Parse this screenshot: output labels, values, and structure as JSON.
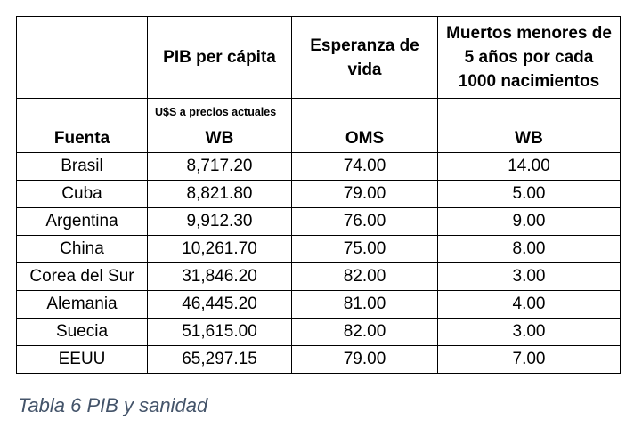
{
  "table": {
    "headers": [
      "",
      "PIB per cápita",
      "Esperanza de vida",
      "Muertos menores de 5 años por cada 1000 nacimientos"
    ],
    "unit_note": "U$S a precios actuales",
    "source_row": [
      "Fuenta",
      "WB",
      "OMS",
      "WB"
    ],
    "rows": [
      [
        "Brasil",
        "8,717.20",
        "74.00",
        "14.00"
      ],
      [
        "Cuba",
        "8,821.80",
        "79.00",
        "5.00"
      ],
      [
        "Argentina",
        "9,912.30",
        "76.00",
        "9.00"
      ],
      [
        "China",
        "10,261.70",
        "75.00",
        "8.00"
      ],
      [
        "Corea del Sur",
        "31,846.20",
        "82.00",
        "3.00"
      ],
      [
        "Alemania",
        "46,445.20",
        "81.00",
        "4.00"
      ],
      [
        "Suecia",
        "51,615.00",
        "82.00",
        "3.00"
      ],
      [
        "EEUU",
        "65,297.15",
        "79.00",
        "7.00"
      ]
    ]
  },
  "caption": "Tabla 6 PIB y sanidad",
  "colors": {
    "caption": "#44546a",
    "border": "#000000"
  }
}
